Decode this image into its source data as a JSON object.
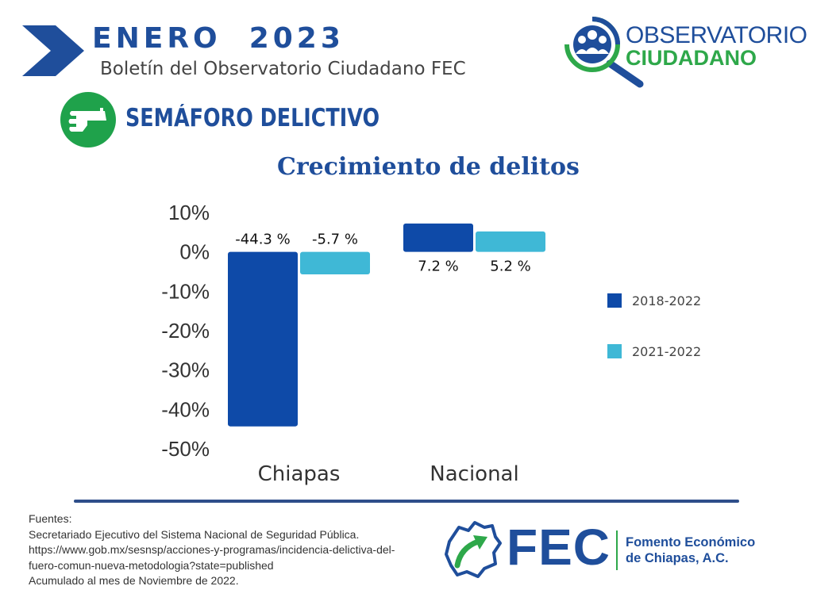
{
  "header": {
    "title": "ENERO  2023",
    "subtitle": "Boletín del Observatorio Ciudadano FEC"
  },
  "logo": {
    "line1": "OBSERVATORIO",
    "line2": "CIUDADANO"
  },
  "section": {
    "title": "SEMÁFORO DELICTIVO",
    "icon": "handgun-icon"
  },
  "colors": {
    "brand_blue": "#1f4e9b",
    "series_dark": "#0e4aa8",
    "series_light": "#3fb8d6",
    "brand_green": "#1fa24b"
  },
  "chart_data": {
    "type": "bar",
    "title": "Crecimiento de delitos",
    "categories": [
      "Chiapas",
      "Nacional"
    ],
    "series": [
      {
        "name": "2018-2022",
        "values": [
          -44.3,
          7.2
        ],
        "labels": [
          "-44.3 %",
          "7.2 %"
        ],
        "color": "#0e4aa8"
      },
      {
        "name": "2021-2022",
        "values": [
          -5.7,
          5.2
        ],
        "labels": [
          "-5.7 %",
          "5.2 %"
        ],
        "color": "#3fb8d6"
      }
    ],
    "ylim": [
      -50,
      10
    ],
    "yticks": [
      10,
      0,
      -10,
      -20,
      -30,
      -40,
      -50
    ],
    "ytick_labels": [
      "10%",
      "0%",
      "-10%",
      "-20%",
      "-30%",
      "-40%",
      "-50%"
    ],
    "legend_position": "right",
    "grid": false
  },
  "sources": {
    "lines": [
      "Fuentes:",
      "Secretariado Ejecutivo del Sistema Nacional de Seguridad Pública.",
      "https://www.gob.mx/sesnsp/acciones-y-programas/incidencia-delictiva-del-",
      "fuero-comun-nueva-metodologia?state=published",
      "Acumulado al mes de Noviembre de 2022."
    ]
  },
  "footer_logo": {
    "acronym": "FEC",
    "name_line1": "Fomento Económico",
    "name_line2": "de Chiapas, A.C."
  }
}
